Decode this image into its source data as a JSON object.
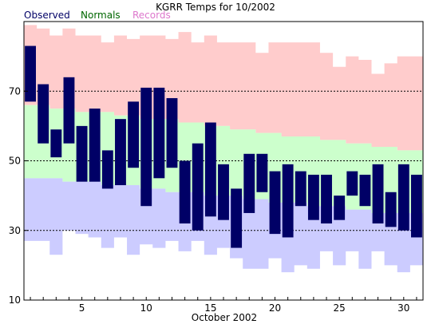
{
  "chart_data": {
    "type": "bar",
    "title": "KGRR Temps for 10/2002",
    "xlabel": "October 2002",
    "ylabel": "",
    "xlim": [
      0.5,
      31.5
    ],
    "ylim": [
      10,
      90
    ],
    "yticks": [
      10,
      30,
      50,
      70
    ],
    "xticks": [
      5,
      10,
      15,
      20,
      25,
      30
    ],
    "gridlines": [
      30,
      50,
      70
    ],
    "legend": {
      "placement": "top-left",
      "entries": [
        {
          "label": "Observed",
          "color": "#000066"
        },
        {
          "label": "Normals",
          "color": "#006600"
        },
        {
          "label": "Records",
          "color": "#dd77cc"
        }
      ]
    },
    "colors": {
      "record_band": "#ffcccc",
      "normal_band": "#ccffcc",
      "lower_band": "#ccccff",
      "observed_bar": "#000066",
      "gridline": "#000000"
    },
    "days": [
      1,
      2,
      3,
      4,
      5,
      6,
      7,
      8,
      9,
      10,
      11,
      12,
      13,
      14,
      15,
      16,
      17,
      18,
      19,
      20,
      21,
      22,
      23,
      24,
      25,
      26,
      27,
      28,
      29,
      30,
      31
    ],
    "record_high": [
      89,
      88,
      86,
      88,
      86,
      86,
      84,
      86,
      85,
      86,
      86,
      85,
      87,
      84,
      86,
      84,
      84,
      84,
      81,
      84,
      84,
      84,
      84,
      81,
      77,
      80,
      79,
      75,
      78,
      80,
      80
    ],
    "normal_high": [
      66,
      66,
      65,
      65,
      64,
      64,
      64,
      63,
      63,
      62,
      62,
      62,
      61,
      61,
      60,
      60,
      59,
      59,
      58,
      58,
      57,
      57,
      57,
      56,
      56,
      55,
      55,
      54,
      54,
      53,
      53
    ],
    "normal_low": [
      45,
      45,
      45,
      44,
      44,
      44,
      43,
      43,
      43,
      42,
      42,
      41,
      41,
      41,
      40,
      40,
      40,
      39,
      39,
      38,
      38,
      38,
      37,
      37,
      37,
      36,
      36,
      35,
      35,
      35,
      35
    ],
    "record_low": [
      27,
      27,
      23,
      30,
      29,
      28,
      25,
      28,
      23,
      26,
      25,
      27,
      24,
      27,
      23,
      25,
      22,
      19,
      19,
      22,
      18,
      20,
      19,
      24,
      20,
      24,
      19,
      24,
      20,
      18,
      20
    ],
    "observed_high": [
      83,
      72,
      59,
      74,
      60,
      65,
      53,
      62,
      67,
      71,
      71,
      68,
      50,
      55,
      61,
      49,
      42,
      52,
      52,
      47,
      49,
      47,
      46,
      46,
      40,
      47,
      46,
      49,
      41,
      49,
      46
    ],
    "observed_low": [
      67,
      55,
      51,
      55,
      44,
      44,
      42,
      43,
      48,
      37,
      45,
      48,
      32,
      30,
      34,
      33,
      25,
      35,
      41,
      29,
      28,
      37,
      33,
      32,
      33,
      40,
      37,
      32,
      31,
      30,
      28
    ]
  }
}
